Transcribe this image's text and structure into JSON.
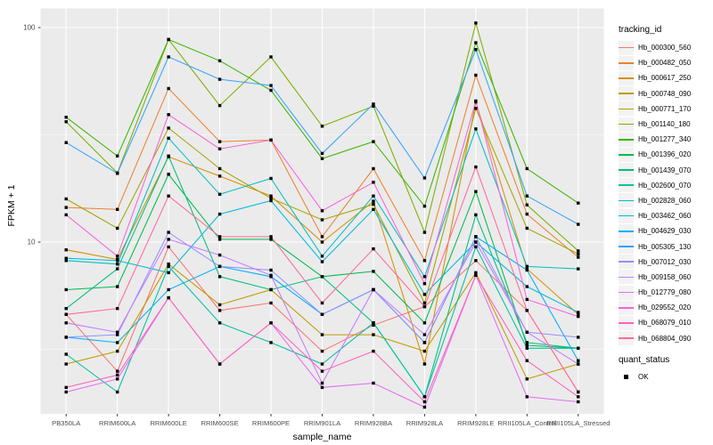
{
  "chart_data": {
    "type": "line",
    "title": "",
    "xlabel": "sample_name",
    "ylabel": "FPKM + 1",
    "yscale": "log10",
    "y_tick_labels": [
      "100",
      "10"
    ],
    "y_tick_values": [
      100,
      10
    ],
    "y_minor_values": [
      31.62,
      3.162
    ],
    "ylim": [
      1.55,
      122
    ],
    "grid": "white-on-gray",
    "legend_position": "right",
    "legend_title": "tracking_id",
    "legend2_title": "quant_status",
    "legend2_items": [
      "OK"
    ],
    "point_shape": "filled-black-square",
    "x_categories": [
      "PB350LA",
      "RRIM600LA",
      "RRIM600LE",
      "RRIM600SE",
      "RRIM600PE",
      "RRIM901LA",
      "RRIM928BA",
      "RRIM928LA",
      "RRIM928LE",
      "RRII105LA_Control",
      "RRII105LA_Stressed"
    ],
    "series": [
      {
        "name": "Hb_000300_560",
        "color": "#F8766D",
        "values": [
          4.6,
          2.5,
          9.5,
          4.8,
          5.2,
          3.1,
          4.1,
          5.0,
          8.2,
          4.8,
          2.0
        ]
      },
      {
        "name": "Hb_000482_050",
        "color": "#EA8331",
        "values": [
          14.5,
          14.2,
          52.0,
          29.4,
          29.9,
          10.6,
          22.0,
          8.2,
          60.0,
          13.5,
          8.5
        ]
      },
      {
        "name": "Hb_000617_250",
        "color": "#D89000",
        "values": [
          9.2,
          8.3,
          25.0,
          20.3,
          16.4,
          10.0,
          15.5,
          2.7,
          45.0,
          7.5,
          4.6
        ]
      },
      {
        "name": "Hb_000748_090",
        "color": "#C09B00",
        "values": [
          2.7,
          3.1,
          7.9,
          5.1,
          6.0,
          3.7,
          3.7,
          3.1,
          7.2,
          2.3,
          2.7
        ]
      },
      {
        "name": "Hb_000771_170",
        "color": "#A3A500",
        "values": [
          15.9,
          11.6,
          34.0,
          22.0,
          16.0,
          12.7,
          15.0,
          5.2,
          42.0,
          11.6,
          8.8
        ]
      },
      {
        "name": "Hb_001140_180",
        "color": "#7CAE00",
        "values": [
          36.4,
          21.0,
          88.0,
          43.3,
          73.0,
          34.7,
          43.0,
          11.1,
          105.0,
          14.9,
          9.1
        ]
      },
      {
        "name": "Hb_001277_340",
        "color": "#39B600",
        "values": [
          38.2,
          25.2,
          88.0,
          70.0,
          51.0,
          24.5,
          29.4,
          14.7,
          85.0,
          22.0,
          15.2
        ]
      },
      {
        "name": "Hb_001396_020",
        "color": "#00BB4E",
        "values": [
          6.0,
          6.2,
          20.7,
          10.3,
          10.3,
          6.9,
          7.3,
          4.2,
          17.2,
          3.3,
          3.2
        ]
      },
      {
        "name": "Hb_001439_070",
        "color": "#00BF7D",
        "values": [
          4.9,
          7.5,
          25.2,
          6.9,
          6.0,
          6.9,
          4.2,
          1.9,
          13.4,
          3.4,
          3.2
        ]
      },
      {
        "name": "Hb_002600_070",
        "color": "#00C1A3",
        "values": [
          3.0,
          2.0,
          7.7,
          4.2,
          3.4,
          2.7,
          4.2,
          1.9,
          9.5,
          3.2,
          3.2
        ]
      },
      {
        "name": "Hb_002828_060",
        "color": "#00BFC4",
        "values": [
          8.2,
          7.9,
          30.5,
          16.7,
          19.8,
          8.6,
          16.4,
          6.9,
          33.7,
          7.7,
          7.5
        ]
      },
      {
        "name": "Hb_003462_060",
        "color": "#00BAE0",
        "values": [
          8.4,
          8.2,
          7.2,
          13.5,
          15.6,
          8.1,
          14.2,
          5.7,
          10.0,
          6.2,
          4.7
        ]
      },
      {
        "name": "Hb_004629_030",
        "color": "#00B0F6",
        "values": [
          3.6,
          3.4,
          6.0,
          7.7,
          6.9,
          4.6,
          6.0,
          3.4,
          10.6,
          7.4,
          2.8
        ]
      },
      {
        "name": "Hb_005305_130",
        "color": "#35A2FF",
        "values": [
          29.1,
          20.9,
          73.0,
          57.4,
          53.7,
          25.9,
          44.0,
          19.9,
          79.0,
          16.4,
          12.1
        ]
      },
      {
        "name": "Hb_007012_030",
        "color": "#9590FF",
        "values": [
          3.6,
          3.7,
          11.1,
          7.7,
          7.4,
          4.6,
          6.0,
          3.4,
          10.6,
          3.8,
          3.6
        ]
      },
      {
        "name": "Hb_009158_060",
        "color": "#C77CFF",
        "values": [
          4.2,
          3.8,
          10.3,
          8.7,
          7.0,
          2.2,
          6.0,
          3.7,
          10.0,
          3.8,
          2.7
        ]
      },
      {
        "name": "Hb_012779_080",
        "color": "#E76BF3",
        "values": [
          2.0,
          2.3,
          5.5,
          2.7,
          4.2,
          2.1,
          2.2,
          1.7,
          7.0,
          1.9,
          1.8
        ]
      },
      {
        "name": "Hb_029552_020",
        "color": "#FA62DB",
        "values": [
          13.4,
          8.6,
          39.3,
          27.2,
          29.9,
          14.0,
          19.0,
          6.4,
          45.5,
          5.4,
          4.5
        ]
      },
      {
        "name": "Hb_068079_010",
        "color": "#FF62BC",
        "values": [
          2.1,
          2.4,
          5.5,
          2.7,
          4.2,
          2.5,
          3.1,
          1.8,
          7.0,
          2.8,
          1.9
        ]
      },
      {
        "name": "Hb_068804_090",
        "color": "#FF6A98",
        "values": [
          4.6,
          4.9,
          16.4,
          10.6,
          10.6,
          5.2,
          9.3,
          5.0,
          22.4,
          4.8,
          2.0
        ]
      }
    ]
  },
  "style": {
    "panel_bg": "#EBEBEB",
    "grid_color": "#FFFFFF",
    "axis_text_color": "#4D4D4D",
    "tick_color": "#333333",
    "point_color": "#000000",
    "legend_key_bg": "#F2F2F2"
  }
}
